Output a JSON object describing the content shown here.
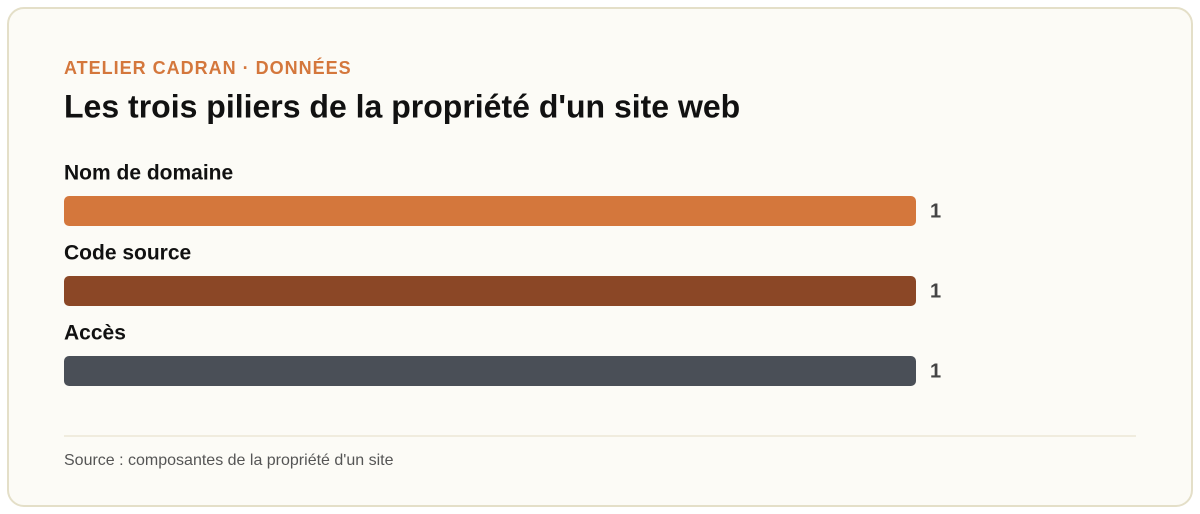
{
  "chart_data": {
    "type": "bar",
    "orientation": "horizontal",
    "kicker": "ATELIER CADRAN · DONNÉES",
    "title": "Les trois piliers de la propriété d'un site web",
    "categories": [
      "Nom de domaine",
      "Code source",
      "Accès"
    ],
    "values": [
      1,
      1,
      1
    ],
    "colors": [
      "#d4773c",
      "#8b4726",
      "#4a4f57"
    ],
    "source": "Source : composantes de la propriété d'un site"
  }
}
